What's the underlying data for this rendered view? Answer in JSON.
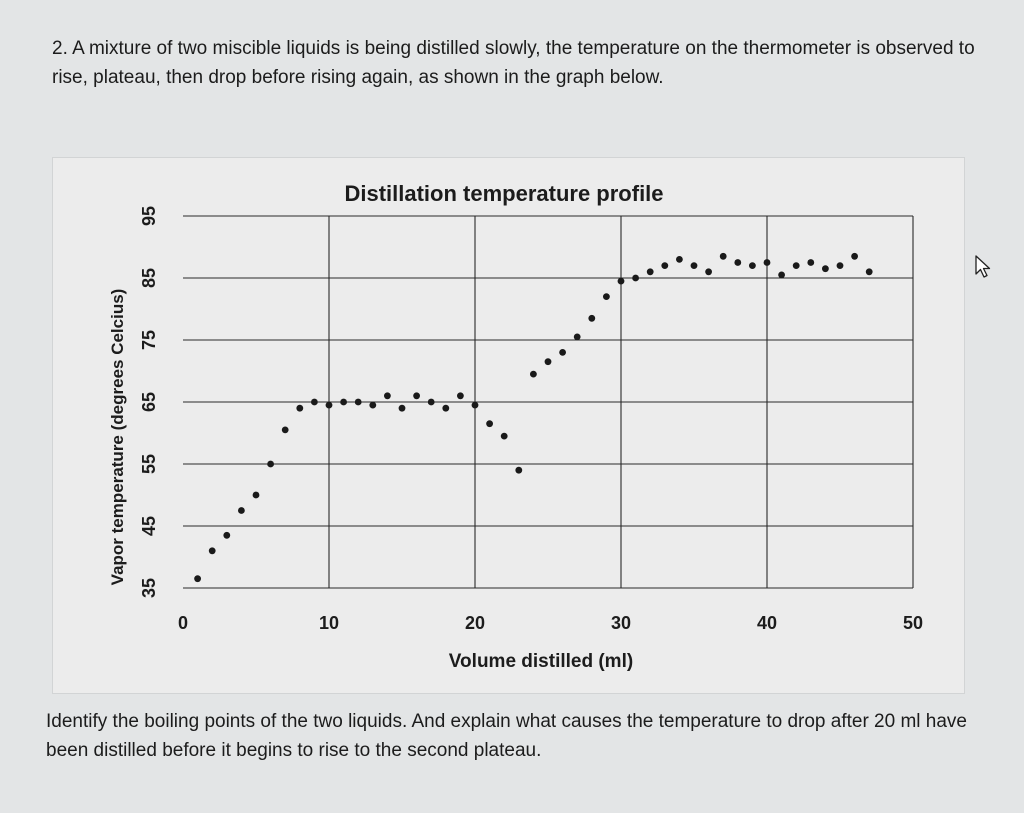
{
  "question": {
    "text": "2. A mixture of two miscible liquids is being distilled slowly, the temperature on the thermometer is observed to rise, plateau, then drop before rising again, as shown in the graph below."
  },
  "chart_data": {
    "type": "scatter",
    "title": "Distillation temperature profile",
    "xlabel": "Volume distilled (ml)",
    "ylabel": "Vapor temperature (degrees Celcius)",
    "xlim": [
      0,
      50
    ],
    "ylim": [
      35,
      95
    ],
    "x_ticks": [
      0,
      10,
      20,
      30,
      40,
      50
    ],
    "y_ticks": [
      35,
      45,
      55,
      65,
      75,
      85,
      95
    ],
    "grid": true,
    "marker_color": "#1a1a1a",
    "series": [
      {
        "points": [
          {
            "x": 1.0,
            "y": 36.5
          },
          {
            "x": 2.0,
            "y": 41.0
          },
          {
            "x": 3.0,
            "y": 43.5
          },
          {
            "x": 4.0,
            "y": 47.5
          },
          {
            "x": 5.0,
            "y": 50.0
          },
          {
            "x": 6.0,
            "y": 55.0
          },
          {
            "x": 7.0,
            "y": 60.5
          },
          {
            "x": 8.0,
            "y": 64.0
          },
          {
            "x": 9.0,
            "y": 65.0
          },
          {
            "x": 10.0,
            "y": 64.5
          },
          {
            "x": 11.0,
            "y": 65.0
          },
          {
            "x": 12.0,
            "y": 65.0
          },
          {
            "x": 13.0,
            "y": 64.5
          },
          {
            "x": 14.0,
            "y": 66.0
          },
          {
            "x": 15.0,
            "y": 64.0
          },
          {
            "x": 16.0,
            "y": 66.0
          },
          {
            "x": 17.0,
            "y": 65.0
          },
          {
            "x": 18.0,
            "y": 64.0
          },
          {
            "x": 19.0,
            "y": 66.0
          },
          {
            "x": 20.0,
            "y": 64.5
          },
          {
            "x": 21.0,
            "y": 61.5
          },
          {
            "x": 22.0,
            "y": 59.5
          },
          {
            "x": 23.0,
            "y": 54.0
          },
          {
            "x": 24.0,
            "y": 69.5
          },
          {
            "x": 25.0,
            "y": 71.5
          },
          {
            "x": 26.0,
            "y": 73.0
          },
          {
            "x": 27.0,
            "y": 75.5
          },
          {
            "x": 28.0,
            "y": 78.5
          },
          {
            "x": 29.0,
            "y": 82.0
          },
          {
            "x": 30.0,
            "y": 84.5
          },
          {
            "x": 31.0,
            "y": 85.0
          },
          {
            "x": 32.0,
            "y": 86.0
          },
          {
            "x": 33.0,
            "y": 87.0
          },
          {
            "x": 34.0,
            "y": 88.0
          },
          {
            "x": 35.0,
            "y": 87.0
          },
          {
            "x": 36.0,
            "y": 86.0
          },
          {
            "x": 37.0,
            "y": 88.5
          },
          {
            "x": 38.0,
            "y": 87.5
          },
          {
            "x": 39.0,
            "y": 87.0
          },
          {
            "x": 40.0,
            "y": 87.5
          },
          {
            "x": 41.0,
            "y": 85.5
          },
          {
            "x": 42.0,
            "y": 87.0
          },
          {
            "x": 43.0,
            "y": 87.5
          },
          {
            "x": 44.0,
            "y": 86.5
          },
          {
            "x": 45.0,
            "y": 87.0
          },
          {
            "x": 46.0,
            "y": 88.5
          },
          {
            "x": 47.0,
            "y": 86.0
          }
        ]
      }
    ]
  },
  "footer": {
    "text": "Identify the boiling points of the two liquids. And explain what causes the temperature to drop after 20 ml have been distilled before it begins to rise to the second plateau."
  },
  "icons": {
    "cursor": "mouse-pointer-icon"
  }
}
